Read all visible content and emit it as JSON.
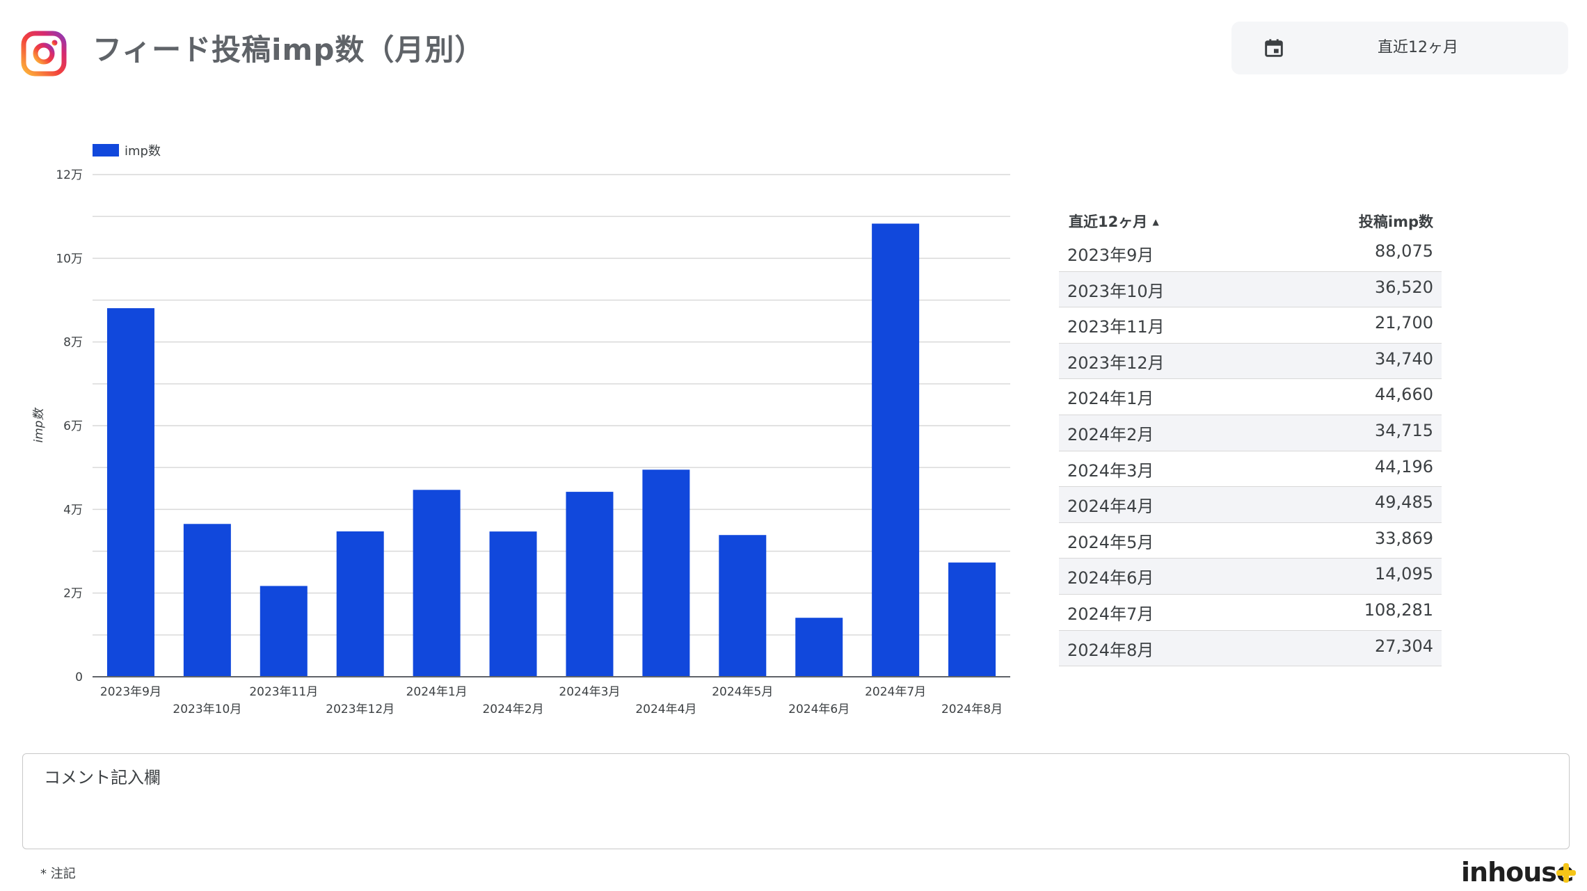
{
  "header": {
    "title": "フィード投稿imp数（月別）",
    "date_range_label": "直近12ヶ月"
  },
  "icons": {
    "app_logo": "instagram-logo-icon",
    "date_control": "calendar-icon",
    "brand_mark": "plus-icon"
  },
  "colors": {
    "bar": "#1148dc",
    "grid": "#d9d9d9",
    "axis": "#5f6368",
    "row_alt": "#f3f4f7",
    "brand_plus": "#f5c518"
  },
  "chart_data": {
    "type": "bar",
    "legend": {
      "label": "imp数",
      "position": "top-left"
    },
    "ylabel": "imp数",
    "xlabel": "",
    "ylim": [
      0,
      120000
    ],
    "y_ticks": [
      {
        "value": 0,
        "label": "0"
      },
      {
        "value": 20000,
        "label": "2万"
      },
      {
        "value": 40000,
        "label": "4万"
      },
      {
        "value": 60000,
        "label": "6万"
      },
      {
        "value": 80000,
        "label": "8万"
      },
      {
        "value": 100000,
        "label": "10万"
      },
      {
        "value": 120000,
        "label": "12万"
      }
    ],
    "grid": true,
    "categories": [
      "2023年9月",
      "2023年10月",
      "2023年11月",
      "2023年12月",
      "2024年1月",
      "2024年2月",
      "2024年3月",
      "2024年4月",
      "2024年5月",
      "2024年6月",
      "2024年7月",
      "2024年8月"
    ],
    "series": [
      {
        "name": "imp数",
        "values": [
          88075,
          36520,
          21700,
          34740,
          44660,
          34715,
          44196,
          49485,
          33869,
          14095,
          108281,
          27304
        ]
      }
    ]
  },
  "table": {
    "headers": {
      "month": "直近12ヶ月",
      "sort_indicator": "▲",
      "value": "投稿imp数"
    },
    "rows": [
      {
        "month": "2023年9月",
        "value": "88,075"
      },
      {
        "month": "2023年10月",
        "value": "36,520"
      },
      {
        "month": "2023年11月",
        "value": "21,700"
      },
      {
        "month": "2023年12月",
        "value": "34,740"
      },
      {
        "month": "2024年1月",
        "value": "44,660"
      },
      {
        "month": "2024年2月",
        "value": "34,715"
      },
      {
        "month": "2024年3月",
        "value": "44,196"
      },
      {
        "month": "2024年4月",
        "value": "49,485"
      },
      {
        "month": "2024年5月",
        "value": "33,869"
      },
      {
        "month": "2024年6月",
        "value": "14,095"
      },
      {
        "month": "2024年7月",
        "value": "108,281"
      },
      {
        "month": "2024年8月",
        "value": "27,304"
      }
    ]
  },
  "comment": {
    "title": "コメント記入欄"
  },
  "footer": {
    "note": "* 注記",
    "brand": "inhouse"
  }
}
